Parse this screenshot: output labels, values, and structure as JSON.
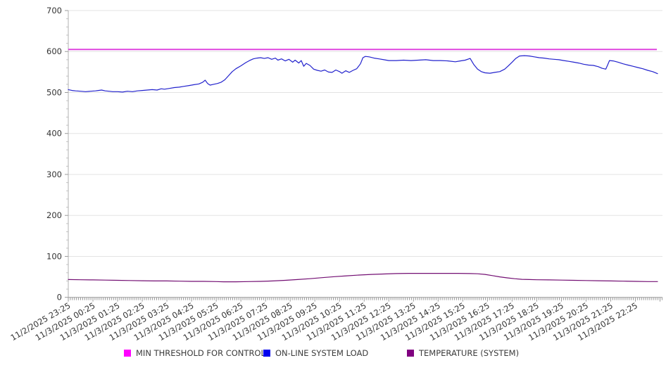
{
  "chart_data": {
    "type": "line",
    "title": "",
    "xlabel": "",
    "ylabel": "",
    "grid": "horizontal",
    "legend_position": "bottom",
    "x_axis": {
      "unit": "hours_from_start",
      "range": [
        0,
        24.1
      ],
      "minor_tick_minutes": 5,
      "labels": [
        "11/2/2025 23:25",
        "11/3/2025 00:25",
        "11/3/2025 01:25",
        "11/3/2025 02:25",
        "11/3/2025 03:25",
        "11/3/2025 04:25",
        "11/3/2025 05:25",
        "11/3/2025 06:25",
        "11/3/2025 07:25",
        "11/3/2025 08:25",
        "11/3/2025 09:25",
        "11/3/2025 10:25",
        "11/3/2025 11:25",
        "11/3/2025 12:25",
        "11/3/2025 13:25",
        "11/3/2025 14:25",
        "11/3/2025 15:25",
        "11/3/2025 16:25",
        "11/3/2025 17:25",
        "11/3/2025 18:25",
        "11/3/2025 19:25",
        "11/3/2025 20:25",
        "11/3/2025 21:25",
        "11/3/2025 22:25"
      ]
    },
    "y_axis": {
      "range": [
        0,
        700
      ],
      "ticks": [
        0,
        100,
        200,
        300,
        400,
        500,
        600,
        700
      ],
      "minor_step": 20
    },
    "colors": {
      "grid": "#e3e3e3",
      "axis": "#b0b0b0",
      "tick": "#999999",
      "label_text": "#333333",
      "legend_text": "#3b3b3b"
    },
    "series": [
      {
        "name": "MIN THRESHOLD FOR CONTROL",
        "slug": "min-threshold-for-control",
        "type": "threshold",
        "color": "#dd3add",
        "legend_color": "#ff00ff",
        "value": 605
      },
      {
        "name": "ON-LINE SYSTEM LOAD",
        "slug": "on-line-system-load",
        "type": "line",
        "color": "#2222cd",
        "legend_color": "#0000ee",
        "points": [
          [
            0,
            507
          ],
          [
            0.15,
            505
          ],
          [
            0.3,
            504
          ],
          [
            0.5,
            503
          ],
          [
            0.7,
            502
          ],
          [
            0.9,
            503
          ],
          [
            1.1,
            504
          ],
          [
            1.22,
            505
          ],
          [
            1.35,
            506
          ],
          [
            1.5,
            504
          ],
          [
            1.65,
            503
          ],
          [
            1.8,
            502
          ],
          [
            2,
            502
          ],
          [
            2.2,
            501
          ],
          [
            2.4,
            503
          ],
          [
            2.6,
            502
          ],
          [
            2.8,
            504
          ],
          [
            3,
            505
          ],
          [
            3.2,
            506
          ],
          [
            3.4,
            507
          ],
          [
            3.6,
            506
          ],
          [
            3.77,
            509
          ],
          [
            3.9,
            508
          ],
          [
            4.1,
            510
          ],
          [
            4.3,
            512
          ],
          [
            4.5,
            513
          ],
          [
            4.7,
            515
          ],
          [
            4.9,
            517
          ],
          [
            5.1,
            519
          ],
          [
            5.3,
            521
          ],
          [
            5.45,
            525
          ],
          [
            5.55,
            530
          ],
          [
            5.65,
            522
          ],
          [
            5.75,
            518
          ],
          [
            5.9,
            520
          ],
          [
            6.05,
            522
          ],
          [
            6.2,
            525
          ],
          [
            6.35,
            531
          ],
          [
            6.5,
            541
          ],
          [
            6.65,
            551
          ],
          [
            6.8,
            558
          ],
          [
            7,
            565
          ],
          [
            7.2,
            573
          ],
          [
            7.35,
            578
          ],
          [
            7.5,
            582
          ],
          [
            7.65,
            584
          ],
          [
            7.8,
            585
          ],
          [
            7.95,
            583
          ],
          [
            8.1,
            585
          ],
          [
            8.25,
            581
          ],
          [
            8.4,
            584
          ],
          [
            8.5,
            579
          ],
          [
            8.65,
            582
          ],
          [
            8.8,
            577
          ],
          [
            8.95,
            581
          ],
          [
            9.1,
            574
          ],
          [
            9.2,
            579
          ],
          [
            9.35,
            572
          ],
          [
            9.45,
            578
          ],
          [
            9.55,
            564
          ],
          [
            9.65,
            571
          ],
          [
            9.8,
            566
          ],
          [
            9.95,
            557
          ],
          [
            10.1,
            554
          ],
          [
            10.25,
            552
          ],
          [
            10.4,
            555
          ],
          [
            10.55,
            550
          ],
          [
            10.7,
            549
          ],
          [
            10.85,
            555
          ],
          [
            11,
            551
          ],
          [
            11.1,
            547
          ],
          [
            11.25,
            553
          ],
          [
            11.4,
            549
          ],
          [
            11.55,
            554
          ],
          [
            11.7,
            558
          ],
          [
            11.85,
            570
          ],
          [
            11.95,
            585
          ],
          [
            12.05,
            588
          ],
          [
            12.2,
            587
          ],
          [
            12.4,
            584
          ],
          [
            12.6,
            582
          ],
          [
            12.8,
            580
          ],
          [
            13,
            578
          ],
          [
            13.3,
            578
          ],
          [
            13.6,
            579
          ],
          [
            13.9,
            578
          ],
          [
            14.2,
            579
          ],
          [
            14.5,
            580
          ],
          [
            14.8,
            578
          ],
          [
            15.1,
            578
          ],
          [
            15.4,
            577
          ],
          [
            15.7,
            575
          ],
          [
            15.9,
            577
          ],
          [
            16.1,
            579
          ],
          [
            16.3,
            583
          ],
          [
            16.45,
            568
          ],
          [
            16.6,
            557
          ],
          [
            16.75,
            551
          ],
          [
            16.9,
            548
          ],
          [
            17.1,
            547
          ],
          [
            17.3,
            549
          ],
          [
            17.5,
            551
          ],
          [
            17.7,
            557
          ],
          [
            17.85,
            565
          ],
          [
            18,
            574
          ],
          [
            18.15,
            583
          ],
          [
            18.3,
            589
          ],
          [
            18.5,
            590
          ],
          [
            18.7,
            589
          ],
          [
            18.9,
            587
          ],
          [
            19.1,
            585
          ],
          [
            19.3,
            584
          ],
          [
            19.5,
            582
          ],
          [
            19.7,
            581
          ],
          [
            19.9,
            580
          ],
          [
            20.1,
            578
          ],
          [
            20.3,
            576
          ],
          [
            20.5,
            574
          ],
          [
            20.7,
            572
          ],
          [
            20.9,
            569
          ],
          [
            21.1,
            567
          ],
          [
            21.3,
            566
          ],
          [
            21.5,
            563
          ],
          [
            21.65,
            559
          ],
          [
            21.8,
            557
          ],
          [
            21.88,
            568
          ],
          [
            21.95,
            578
          ],
          [
            22.1,
            577
          ],
          [
            22.3,
            574
          ],
          [
            22.5,
            570
          ],
          [
            22.7,
            567
          ],
          [
            22.9,
            564
          ],
          [
            23.1,
            561
          ],
          [
            23.3,
            558
          ],
          [
            23.5,
            554
          ],
          [
            23.7,
            551
          ],
          [
            23.9,
            546
          ]
        ]
      },
      {
        "name": "TEMPERATURE (SYSTEM)",
        "slug": "temperature-system",
        "type": "line",
        "color": "#730f73",
        "legend_color": "#800080",
        "points": [
          [
            0,
            43.5
          ],
          [
            0.5,
            43
          ],
          [
            1,
            42.5
          ],
          [
            1.5,
            42
          ],
          [
            2,
            41.5
          ],
          [
            2.5,
            41
          ],
          [
            3,
            40.5
          ],
          [
            3.5,
            40
          ],
          [
            4,
            40
          ],
          [
            4.5,
            39.5
          ],
          [
            5,
            39
          ],
          [
            5.5,
            39
          ],
          [
            6,
            38.5
          ],
          [
            6.3,
            38
          ],
          [
            6.8,
            38
          ],
          [
            7.3,
            38.5
          ],
          [
            7.8,
            39
          ],
          [
            8.3,
            40
          ],
          [
            8.8,
            41.5
          ],
          [
            9.3,
            43.5
          ],
          [
            9.8,
            45.5
          ],
          [
            10.3,
            48
          ],
          [
            10.8,
            50.5
          ],
          [
            11.3,
            52.5
          ],
          [
            11.8,
            54.5
          ],
          [
            12.3,
            56
          ],
          [
            12.8,
            57
          ],
          [
            13.3,
            58
          ],
          [
            13.8,
            58.5
          ],
          [
            14.3,
            58.5
          ],
          [
            14.8,
            58.5
          ],
          [
            15.3,
            58.5
          ],
          [
            15.8,
            58.5
          ],
          [
            16.3,
            58
          ],
          [
            16.6,
            57.5
          ],
          [
            16.9,
            56
          ],
          [
            17.2,
            53
          ],
          [
            17.5,
            50
          ],
          [
            17.8,
            47.5
          ],
          [
            18.1,
            45.5
          ],
          [
            18.4,
            44
          ],
          [
            18.7,
            43.5
          ],
          [
            19,
            43
          ],
          [
            19.5,
            42.5
          ],
          [
            20,
            42
          ],
          [
            20.5,
            41.5
          ],
          [
            21,
            41
          ],
          [
            21.5,
            40.5
          ],
          [
            22,
            40
          ],
          [
            22.5,
            39.5
          ],
          [
            23,
            39
          ],
          [
            23.5,
            38.5
          ],
          [
            23.9,
            38.5
          ]
        ]
      }
    ]
  }
}
